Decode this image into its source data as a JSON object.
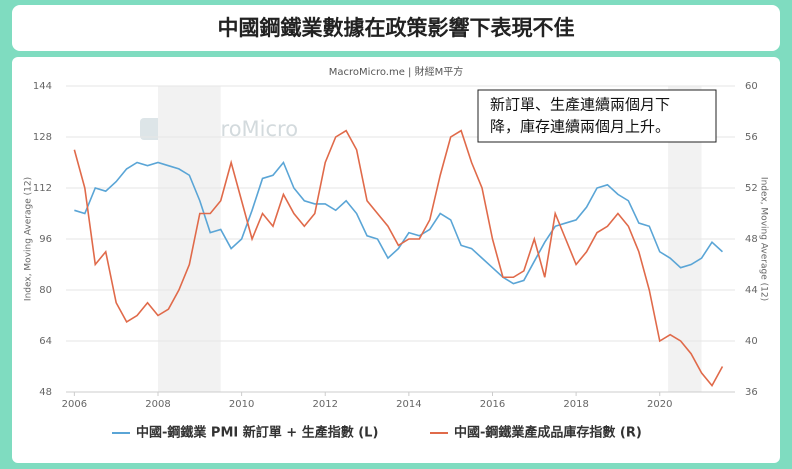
{
  "chart_data": {
    "type": "line",
    "title": "中國鋼鐵業數據在政策影響下表現不佳",
    "source": "MacroMicro.me | 財經M平方",
    "watermark": "MacroMicro",
    "annotation": [
      "新訂單、生產連續兩個月下",
      "降，庫存連續兩個月上升。"
    ],
    "y_label": "Index, Moving Average (12)",
    "y2_label": "Index, Moving Average (12)",
    "shaded_ranges": [
      [
        2008,
        2009.5
      ],
      [
        2020.2,
        2021
      ]
    ],
    "x": [
      2006.0,
      2006.25,
      2006.5,
      2006.75,
      2007.0,
      2007.25,
      2007.5,
      2007.75,
      2008.0,
      2008.25,
      2008.5,
      2008.75,
      2009.0,
      2009.25,
      2009.5,
      2009.75,
      2010.0,
      2010.25,
      2010.5,
      2010.75,
      2011.0,
      2011.25,
      2011.5,
      2011.75,
      2012.0,
      2012.25,
      2012.5,
      2012.75,
      2013.0,
      2013.25,
      2013.5,
      2013.75,
      2014.0,
      2014.25,
      2014.5,
      2014.75,
      2015.0,
      2015.25,
      2015.5,
      2015.75,
      2016.0,
      2016.25,
      2016.5,
      2016.75,
      2017.0,
      2017.25,
      2017.5,
      2017.75,
      2018.0,
      2018.25,
      2018.5,
      2018.75,
      2019.0,
      2019.25,
      2019.5,
      2019.75,
      2020.0,
      2020.25,
      2020.5,
      2020.75,
      2021.0,
      2021.25,
      2021.5
    ],
    "series": [
      {
        "name": "中國-鋼鐵業 PMI 新訂單 + 生產指數 (L)",
        "color": "#5aa5d6",
        "values": [
          105,
          104,
          112,
          111,
          114,
          118,
          120,
          119,
          120,
          119,
          118,
          116,
          108,
          98,
          99,
          93,
          96,
          105,
          115,
          116,
          120,
          112,
          108,
          107,
          107,
          105,
          108,
          104,
          97,
          96,
          90,
          93,
          98,
          97,
          99,
          104,
          102,
          94,
          93,
          90,
          87,
          84,
          82,
          83,
          89,
          95,
          100,
          101,
          102,
          106,
          112,
          113,
          110,
          108,
          101,
          100,
          92,
          90,
          87,
          88,
          90,
          95,
          92
        ]
      },
      {
        "name": "中國-鋼鐵業產成品庫存指數 (R)",
        "color": "#e06a4a",
        "axis": "y2",
        "values": [
          55,
          52,
          46,
          47,
          43,
          41.5,
          42,
          43,
          42,
          42.5,
          44,
          46,
          50,
          50,
          51,
          54,
          51,
          48,
          50,
          49,
          51.5,
          50,
          49,
          50,
          54,
          56,
          56.5,
          55,
          51,
          50,
          49,
          47.5,
          48,
          48,
          49.5,
          53,
          56,
          56.5,
          54,
          52,
          48,
          45,
          45,
          45.5,
          48,
          45,
          50,
          48,
          46,
          47,
          48.5,
          49,
          50,
          49,
          47,
          44,
          40,
          40.5,
          40,
          39,
          37.5,
          36.5,
          38
        ]
      }
    ],
    "xlim": [
      2005.8,
      2021.8
    ],
    "xticks": [
      2006,
      2008,
      2010,
      2012,
      2014,
      2016,
      2018,
      2020
    ],
    "ylim": [
      48,
      144
    ],
    "yticks": [
      48,
      64,
      80,
      96,
      112,
      128,
      144
    ],
    "y2lim": [
      36,
      60
    ],
    "y2ticks": [
      36,
      40,
      44,
      48,
      52,
      56,
      60
    ],
    "grid": true
  }
}
